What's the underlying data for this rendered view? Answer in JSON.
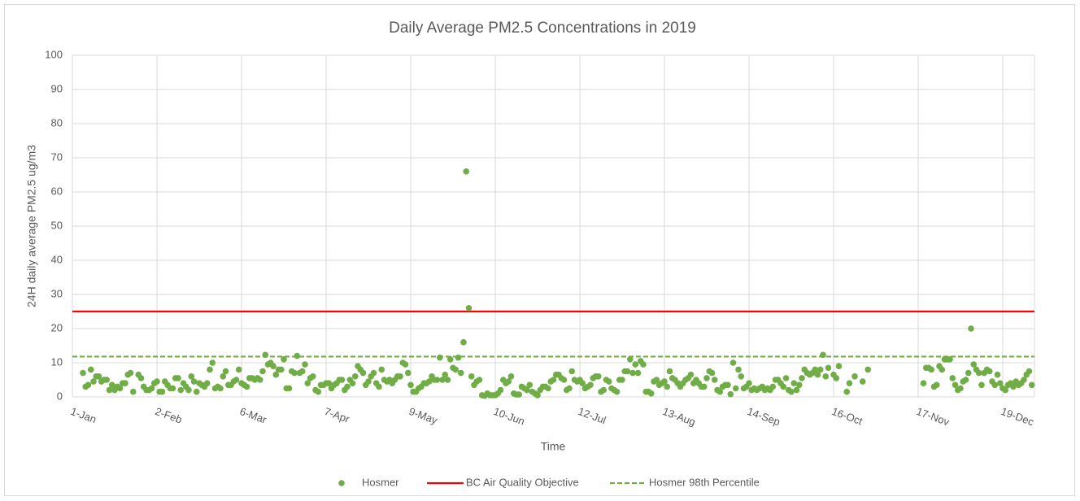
{
  "chart_data": {
    "type": "scatter",
    "title": "Daily Average PM2.5 Concentrations in 2019",
    "x_label": "Time",
    "y_label": "24H daily average PM2.5 ug/m3",
    "xlim": [
      1,
      365
    ],
    "ylim": [
      0,
      100
    ],
    "xticks": [
      {
        "value": 1,
        "label": "1-Jan"
      },
      {
        "value": 33,
        "label": "2-Feb"
      },
      {
        "value": 65,
        "label": "6-Mar"
      },
      {
        "value": 97,
        "label": "7-Apr"
      },
      {
        "value": 129,
        "label": "9-May"
      },
      {
        "value": 161,
        "label": "10-Jun"
      },
      {
        "value": 193,
        "label": "12-Jul"
      },
      {
        "value": 225,
        "label": "13-Aug"
      },
      {
        "value": 257,
        "label": "14-Sep"
      },
      {
        "value": 289,
        "label": "16-Oct"
      },
      {
        "value": 321,
        "label": "17-Nov"
      },
      {
        "value": 353,
        "label": "19-Dec"
      }
    ],
    "yticks": [
      0,
      10,
      20,
      30,
      40,
      50,
      60,
      70,
      80,
      90,
      100
    ],
    "grid": true,
    "legend": "bottom",
    "x": [
      1,
      2,
      3,
      4,
      5,
      6,
      7,
      8,
      9,
      10,
      11,
      12,
      13,
      14,
      15,
      16,
      17,
      18,
      19,
      20,
      21,
      22,
      23,
      24,
      25,
      26,
      27,
      28,
      29,
      30,
      31,
      32,
      33,
      34,
      35,
      36,
      37,
      38,
      39,
      40,
      41,
      42,
      43,
      44,
      45,
      46,
      47,
      48,
      49,
      50,
      51,
      52,
      53,
      54,
      55,
      56,
      57,
      58,
      59,
      60,
      61,
      62,
      63,
      64,
      65,
      66,
      67,
      68,
      69,
      70,
      71,
      72,
      73,
      74,
      75,
      76,
      77,
      78,
      79,
      80,
      81,
      82,
      83,
      84,
      85,
      86,
      87,
      88,
      89,
      90,
      91,
      92,
      93,
      94,
      95,
      96,
      97,
      98,
      99,
      100,
      101,
      102,
      103,
      104,
      105,
      106,
      107,
      108,
      109,
      110,
      111,
      112,
      113,
      114,
      115,
      116,
      117,
      118,
      119,
      120,
      121,
      122,
      123,
      124,
      125,
      126,
      127,
      128,
      129,
      130,
      131,
      132,
      133,
      134,
      135,
      136,
      137,
      138,
      139,
      140,
      141,
      142,
      143,
      144,
      145,
      146,
      147,
      148,
      149,
      150,
      151,
      152,
      153,
      154,
      155,
      156,
      157,
      158,
      159,
      160,
      161,
      162,
      163,
      164,
      165,
      166,
      167,
      168,
      169,
      170,
      171,
      172,
      173,
      174,
      175,
      176,
      177,
      178,
      179,
      180,
      181,
      182,
      183,
      184,
      185,
      186,
      187,
      188,
      189,
      190,
      191,
      192,
      193,
      194,
      195,
      196,
      197,
      198,
      199,
      200,
      201,
      202,
      203,
      204,
      205,
      206,
      207,
      208,
      209,
      210,
      211,
      212,
      213,
      214,
      215,
      216,
      217,
      218,
      219,
      220,
      221,
      222,
      223,
      224,
      225,
      226,
      227,
      228,
      229,
      230,
      231,
      232,
      233,
      234,
      235,
      236,
      237,
      238,
      239,
      240,
      241,
      242,
      243,
      244,
      245,
      246,
      247,
      248,
      249,
      250,
      251,
      252,
      253,
      254,
      255,
      256,
      257,
      258,
      259,
      260,
      261,
      262,
      263,
      264,
      265,
      266,
      267,
      268,
      269,
      270,
      271,
      272,
      273,
      274,
      275,
      276,
      277,
      278,
      279,
      280,
      281,
      282,
      283,
      284,
      285,
      286,
      287,
      288,
      289,
      290,
      291,
      292,
      293,
      294,
      295,
      296,
      297,
      298,
      299,
      300,
      301,
      302,
      303,
      304,
      305,
      306,
      307,
      308,
      309,
      310,
      311,
      312,
      313,
      314,
      315,
      316,
      317,
      318,
      319,
      320,
      321,
      322,
      323,
      324,
      325,
      326,
      327,
      328,
      329,
      330,
      331,
      332,
      333,
      334,
      335,
      336,
      337,
      338,
      339,
      340,
      341,
      342,
      343,
      344,
      345,
      346,
      347,
      348,
      349,
      350,
      351,
      352,
      353,
      354,
      355,
      356,
      357,
      358,
      359,
      360,
      361,
      362,
      363,
      364,
      365
    ],
    "series": [
      {
        "name": "Hosmer",
        "color": "#70ad47",
        "values": [
          null,
          null,
          null,
          null,
          7,
          3,
          3.5,
          8,
          4.5,
          6,
          6,
          4.5,
          5,
          5,
          2,
          3.5,
          2,
          3,
          2.5,
          4,
          4,
          6.5,
          7,
          1.5,
          null,
          6.5,
          5.5,
          3,
          2,
          2,
          2.5,
          4,
          4.5,
          1.5,
          1.5,
          4.5,
          3.5,
          2.5,
          2.5,
          5.5,
          5.5,
          2,
          4,
          3,
          2,
          6,
          4.5,
          1.5,
          4,
          3.5,
          3,
          4,
          8,
          10,
          2.5,
          3,
          2.5,
          6,
          7.5,
          3.5,
          3.5,
          4.5,
          5,
          8,
          4,
          3.5,
          3,
          5.5,
          5.5,
          5,
          5.5,
          5,
          7.5,
          12.3,
          9.5,
          10,
          9,
          6.5,
          8,
          8,
          11,
          2.5,
          2.5,
          7.5,
          7,
          12,
          7,
          7.5,
          9.5,
          4,
          5.5,
          6,
          2,
          1.5,
          3.5,
          3.5,
          4,
          4,
          2.5,
          3.5,
          4,
          5,
          5,
          2,
          3,
          5,
          4,
          6,
          9,
          8,
          7,
          3.5,
          4.5,
          6,
          7,
          4,
          3,
          8,
          5,
          4.5,
          5,
          4,
          5,
          6,
          6,
          10,
          9.5,
          7,
          3.5,
          1.5,
          1.5,
          2.5,
          3,
          4,
          4,
          4.5,
          6,
          5,
          5,
          11.5,
          5,
          6.5,
          5,
          11,
          8.5,
          8,
          11.5,
          7,
          16,
          66,
          26,
          6,
          3.5,
          4.5,
          5,
          0.5,
          0.3,
          1,
          0.5,
          0.5,
          0.5,
          1,
          2,
          5,
          4,
          4.5,
          6,
          1,
          0.7,
          0.7,
          3,
          2.5,
          2,
          3.5,
          1.5,
          1,
          0.5,
          2,
          3,
          3,
          2.5,
          4.5,
          5,
          6.5,
          6.5,
          5.5,
          5,
          2,
          2.5,
          7.5,
          5,
          4.5,
          5,
          4,
          2.5,
          3,
          3.5,
          5.5,
          6,
          6,
          1.5,
          2,
          5,
          4.5,
          2.5,
          2,
          1.5,
          5,
          5,
          7.5,
          7.5,
          11,
          7,
          9.5,
          7,
          10.5,
          9.5,
          1.5,
          1.5,
          1,
          4.5,
          5,
          3.5,
          4,
          4.5,
          3,
          7.5,
          5.5,
          5,
          4,
          3,
          4,
          5,
          5.5,
          6.5,
          4,
          5,
          4,
          3,
          3,
          5.5,
          7.5,
          7,
          5,
          2,
          1.5,
          3,
          3.5,
          3.5,
          0.8,
          10,
          2.5,
          8,
          6,
          2.5,
          3,
          4,
          2,
          2.5,
          2,
          2.5,
          3,
          2,
          2.5,
          2,
          3,
          5,
          5,
          4,
          3,
          5.5,
          2,
          1.5,
          4,
          2,
          3.5,
          5.5,
          8,
          7,
          6.5,
          7,
          8,
          6.5,
          8,
          12.3,
          6,
          8.5,
          null,
          6.5,
          5.5,
          9,
          null,
          null,
          1.5,
          4,
          null,
          6,
          null,
          null,
          4.5,
          null,
          8,
          null,
          null,
          null,
          null,
          null,
          null,
          null,
          null,
          null,
          null,
          null,
          null,
          null,
          null,
          null,
          null,
          null,
          null,
          null,
          null,
          4,
          8.5,
          8.5,
          8,
          3,
          3.5,
          9,
          8,
          11,
          11,
          11,
          5.5,
          3.5,
          2,
          2.5,
          4.5,
          5,
          7,
          20,
          9.5,
          8,
          7,
          3.5,
          7,
          8,
          7.5,
          4.5,
          3.5,
          6.5,
          4,
          2.5,
          2,
          3.5,
          4,
          3,
          4.5,
          3.5,
          4,
          5,
          6.5,
          7.5,
          3.5,
          null
        ]
      }
    ],
    "reference_lines": [
      {
        "name": "BC Air Quality Objective",
        "value": 25,
        "color": "#ff0000",
        "style": "solid"
      },
      {
        "name": "Hosmer 98th Percentile",
        "value": 11.8,
        "color": "#70ad47",
        "style": "dashed"
      }
    ]
  }
}
